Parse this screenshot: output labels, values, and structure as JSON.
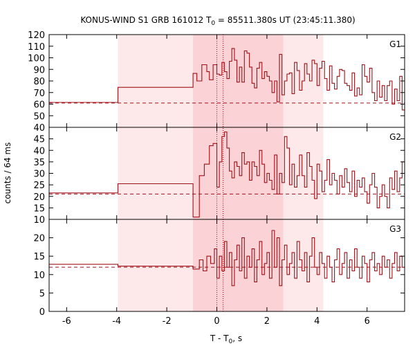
{
  "chart_data": {
    "type": "line",
    "title_prefix": "KONUS-WIND S1 GRB 161012 T",
    "title_sub": "0",
    "title_suffix": " = 85511.380s UT (23:45:11.380)",
    "xlabel_prefix": "T - T",
    "xlabel_sub": "0",
    "xlabel_suffix": ", s",
    "ylabel": "counts / 64 ms",
    "xlim": [
      -6.7,
      7.5
    ],
    "x_ticks": [
      -6,
      -4,
      -2,
      0,
      2,
      4,
      6
    ],
    "shaded_intervals": [
      {
        "x0": -3.95,
        "x1": 4.25,
        "color": "#fde9ea"
      },
      {
        "x0": -0.95,
        "x1": 2.65,
        "color": "#fbd2d5"
      }
    ],
    "vertical_markers": [
      0.0,
      0.25
    ],
    "line_color": "#a01018",
    "panels": [
      {
        "name": "G1",
        "ylim": [
          40,
          120
        ],
        "y_ticks": [
          40,
          50,
          60,
          70,
          80,
          90,
          100,
          110,
          120
        ],
        "background": 61,
        "step": [
          [
            -6.7,
            61.5
          ],
          [
            -3.95,
            74.5
          ],
          [
            -0.95,
            86.5
          ],
          [
            -0.8,
            80
          ],
          [
            -0.6,
            94
          ],
          [
            -0.4,
            88
          ],
          [
            -0.3,
            81
          ],
          [
            -0.15,
            94
          ],
          [
            0.0,
            86
          ],
          [
            0.1,
            85
          ],
          [
            0.2,
            96
          ],
          [
            0.3,
            88
          ],
          [
            0.4,
            82
          ],
          [
            0.5,
            97
          ],
          [
            0.6,
            108
          ],
          [
            0.7,
            98
          ],
          [
            0.8,
            79
          ],
          [
            0.9,
            92
          ],
          [
            1.0,
            79
          ],
          [
            1.1,
            106
          ],
          [
            1.2,
            104
          ],
          [
            1.3,
            92
          ],
          [
            1.4,
            78
          ],
          [
            1.5,
            74
          ],
          [
            1.6,
            91
          ],
          [
            1.7,
            96
          ],
          [
            1.8,
            82
          ],
          [
            1.9,
            88
          ],
          [
            2.0,
            84
          ],
          [
            2.1,
            80
          ],
          [
            2.2,
            70
          ],
          [
            2.3,
            80
          ],
          [
            2.4,
            62
          ],
          [
            2.5,
            103
          ],
          [
            2.6,
            68
          ],
          [
            2.7,
            80
          ],
          [
            2.8,
            86
          ],
          [
            2.9,
            87
          ],
          [
            3.0,
            69
          ],
          [
            3.1,
            96
          ],
          [
            3.2,
            89
          ],
          [
            3.3,
            72
          ],
          [
            3.4,
            80
          ],
          [
            3.5,
            95
          ],
          [
            3.6,
            86
          ],
          [
            3.7,
            80
          ],
          [
            3.8,
            98
          ],
          [
            3.9,
            95
          ],
          [
            4.0,
            76
          ],
          [
            4.1,
            91
          ],
          [
            4.2,
            97
          ],
          [
            4.3,
            82
          ],
          [
            4.4,
            72
          ],
          [
            4.5,
            93
          ],
          [
            4.6,
            78
          ],
          [
            4.7,
            73
          ],
          [
            4.8,
            84
          ],
          [
            4.9,
            90
          ],
          [
            5.0,
            89
          ],
          [
            5.1,
            78
          ],
          [
            5.2,
            76
          ],
          [
            5.3,
            72
          ],
          [
            5.4,
            87
          ],
          [
            5.5,
            67
          ],
          [
            5.6,
            74
          ],
          [
            5.7,
            68
          ],
          [
            5.8,
            94
          ],
          [
            5.9,
            84
          ],
          [
            6.0,
            79
          ],
          [
            6.1,
            91
          ],
          [
            6.2,
            70
          ],
          [
            6.3,
            63
          ],
          [
            6.4,
            80
          ],
          [
            6.5,
            66
          ],
          [
            6.6,
            76
          ],
          [
            6.7,
            63
          ],
          [
            6.8,
            76
          ],
          [
            6.9,
            80
          ],
          [
            7.0,
            60
          ],
          [
            7.1,
            73
          ],
          [
            7.2,
            63
          ],
          [
            7.3,
            84
          ],
          [
            7.4,
            55
          ],
          [
            7.5,
            55
          ]
        ]
      },
      {
        "name": "G2",
        "ylim": [
          10,
          50
        ],
        "y_ticks": [
          10,
          15,
          20,
          25,
          30,
          35,
          40,
          45,
          50
        ],
        "background": 21,
        "step": [
          [
            -6.7,
            21.5
          ],
          [
            -3.95,
            25.5
          ],
          [
            -0.95,
            11
          ],
          [
            -0.7,
            29
          ],
          [
            -0.5,
            34
          ],
          [
            -0.3,
            42
          ],
          [
            -0.15,
            43
          ],
          [
            0.0,
            24
          ],
          [
            0.1,
            35
          ],
          [
            0.2,
            46
          ],
          [
            0.3,
            48
          ],
          [
            0.4,
            41
          ],
          [
            0.5,
            31
          ],
          [
            0.6,
            28
          ],
          [
            0.7,
            35
          ],
          [
            0.8,
            33
          ],
          [
            0.9,
            29
          ],
          [
            1.0,
            39
          ],
          [
            1.1,
            34
          ],
          [
            1.2,
            35
          ],
          [
            1.3,
            27
          ],
          [
            1.4,
            35
          ],
          [
            1.5,
            33
          ],
          [
            1.6,
            29
          ],
          [
            1.7,
            40
          ],
          [
            1.8,
            34
          ],
          [
            1.9,
            26
          ],
          [
            2.0,
            30
          ],
          [
            2.1,
            27
          ],
          [
            2.2,
            23
          ],
          [
            2.3,
            38
          ],
          [
            2.4,
            21
          ],
          [
            2.5,
            30
          ],
          [
            2.6,
            26
          ],
          [
            2.7,
            46
          ],
          [
            2.8,
            41
          ],
          [
            2.9,
            25
          ],
          [
            3.0,
            34
          ],
          [
            3.1,
            24
          ],
          [
            3.2,
            29
          ],
          [
            3.3,
            38
          ],
          [
            3.4,
            29
          ],
          [
            3.5,
            24
          ],
          [
            3.6,
            39
          ],
          [
            3.7,
            33
          ],
          [
            3.8,
            27
          ],
          [
            3.9,
            19
          ],
          [
            4.0,
            34
          ],
          [
            4.1,
            31
          ],
          [
            4.2,
            22
          ],
          [
            4.3,
            27
          ],
          [
            4.4,
            36
          ],
          [
            4.5,
            25
          ],
          [
            4.6,
            30
          ],
          [
            4.7,
            27
          ],
          [
            4.8,
            21
          ],
          [
            4.9,
            29
          ],
          [
            5.0,
            24
          ],
          [
            5.1,
            32
          ],
          [
            5.2,
            26
          ],
          [
            5.3,
            22
          ],
          [
            5.4,
            31
          ],
          [
            5.5,
            20
          ],
          [
            5.6,
            27
          ],
          [
            5.7,
            24
          ],
          [
            5.8,
            28
          ],
          [
            5.9,
            22
          ],
          [
            6.0,
            17
          ],
          [
            6.1,
            25
          ],
          [
            6.2,
            30
          ],
          [
            6.3,
            24
          ],
          [
            6.4,
            15
          ],
          [
            6.5,
            20
          ],
          [
            6.6,
            25
          ],
          [
            6.7,
            20
          ],
          [
            6.8,
            15
          ],
          [
            6.9,
            28
          ],
          [
            7.0,
            23
          ],
          [
            7.1,
            31
          ],
          [
            7.2,
            22
          ],
          [
            7.3,
            28
          ],
          [
            7.4,
            35
          ],
          [
            7.5,
            35
          ]
        ]
      },
      {
        "name": "G3",
        "ylim": [
          0,
          25
        ],
        "y_ticks": [
          0,
          5,
          10,
          15,
          20
        ],
        "background": 12,
        "step": [
          [
            -6.7,
            12.8
          ],
          [
            -3.95,
            12.3
          ],
          [
            -0.95,
            11.5
          ],
          [
            -0.7,
            14
          ],
          [
            -0.55,
            11
          ],
          [
            -0.4,
            15
          ],
          [
            -0.25,
            13
          ],
          [
            -0.1,
            17
          ],
          [
            0.0,
            9
          ],
          [
            0.1,
            15
          ],
          [
            0.2,
            11
          ],
          [
            0.3,
            19
          ],
          [
            0.4,
            12
          ],
          [
            0.5,
            16
          ],
          [
            0.6,
            7
          ],
          [
            0.7,
            14
          ],
          [
            0.8,
            18
          ],
          [
            0.9,
            11
          ],
          [
            1.0,
            20
          ],
          [
            1.1,
            9
          ],
          [
            1.2,
            15
          ],
          [
            1.3,
            12
          ],
          [
            1.4,
            17
          ],
          [
            1.5,
            8
          ],
          [
            1.6,
            14
          ],
          [
            1.7,
            19
          ],
          [
            1.8,
            10
          ],
          [
            1.9,
            13
          ],
          [
            2.0,
            16
          ],
          [
            2.1,
            9
          ],
          [
            2.2,
            22
          ],
          [
            2.3,
            12
          ],
          [
            2.4,
            20
          ],
          [
            2.5,
            7
          ],
          [
            2.6,
            14
          ],
          [
            2.7,
            18
          ],
          [
            2.8,
            10
          ],
          [
            2.9,
            13
          ],
          [
            3.0,
            16
          ],
          [
            3.1,
            9
          ],
          [
            3.2,
            19
          ],
          [
            3.3,
            14
          ],
          [
            3.4,
            11
          ],
          [
            3.5,
            16
          ],
          [
            3.6,
            8
          ],
          [
            3.7,
            15
          ],
          [
            3.8,
            20
          ],
          [
            3.9,
            12
          ],
          [
            4.0,
            10
          ],
          [
            4.1,
            16
          ],
          [
            4.2,
            13
          ],
          [
            4.3,
            9
          ],
          [
            4.4,
            15
          ],
          [
            4.5,
            12
          ],
          [
            4.6,
            8
          ],
          [
            4.7,
            14
          ],
          [
            4.8,
            17
          ],
          [
            4.9,
            10
          ],
          [
            5.0,
            13
          ],
          [
            5.1,
            16
          ],
          [
            5.2,
            9
          ],
          [
            5.3,
            14
          ],
          [
            5.4,
            11
          ],
          [
            5.5,
            17
          ],
          [
            5.6,
            12
          ],
          [
            5.7,
            9
          ],
          [
            5.8,
            15
          ],
          [
            5.9,
            13
          ],
          [
            6.0,
            8
          ],
          [
            6.1,
            14
          ],
          [
            6.2,
            16
          ],
          [
            6.3,
            11
          ],
          [
            6.4,
            13
          ],
          [
            6.5,
            10
          ],
          [
            6.6,
            15
          ],
          [
            6.7,
            12
          ],
          [
            6.8,
            14
          ],
          [
            6.9,
            9
          ],
          [
            7.0,
            13
          ],
          [
            7.1,
            16
          ],
          [
            7.2,
            11
          ],
          [
            7.3,
            15
          ],
          [
            7.4,
            12
          ],
          [
            7.5,
            12
          ]
        ]
      }
    ]
  }
}
